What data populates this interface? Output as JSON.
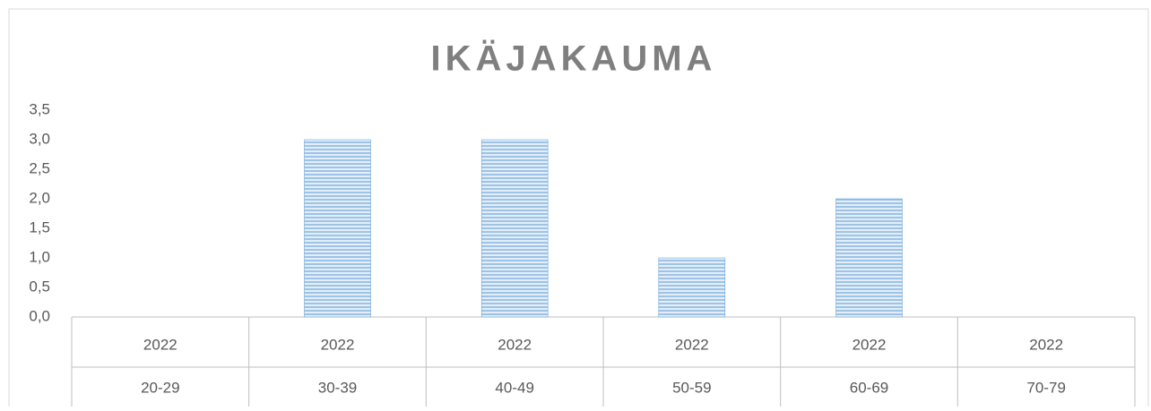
{
  "chart_data": {
    "type": "bar",
    "title": "IKÄJAKAUMA",
    "categories": [
      "20-29",
      "30-39",
      "40-49",
      "50-59",
      "60-69",
      "70-79"
    ],
    "category_years": [
      "2022",
      "2022",
      "2022",
      "2022",
      "2022",
      "2022"
    ],
    "values": [
      0,
      3,
      3,
      1,
      2,
      0
    ],
    "color": "#5b9bd5",
    "ylim": [
      0,
      3.5
    ],
    "yticks": [
      {
        "value": 0,
        "label": "0,0"
      },
      {
        "value": 0.5,
        "label": "0,5"
      },
      {
        "value": 1,
        "label": "1,0"
      },
      {
        "value": 1.5,
        "label": "1,5"
      },
      {
        "value": 2,
        "label": "2,0"
      },
      {
        "value": 2.5,
        "label": "2,5"
      },
      {
        "value": 3,
        "label": "3,0"
      },
      {
        "value": 3.5,
        "label": "3,5"
      }
    ],
    "grid": false
  }
}
